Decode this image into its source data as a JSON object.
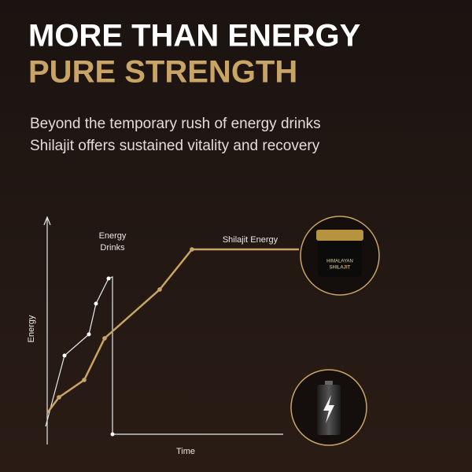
{
  "header": {
    "title": [
      "MORE THAN ENERGY",
      "PURE STRENGTH"
    ],
    "subtitle": [
      "Beyond the temporary rush of energy drinks",
      "Shilajit offers sustained vitality and recovery"
    ]
  },
  "graphic": {
    "drinks_label": [
      "Energy",
      "Drinks"
    ],
    "shilajit_label": "Shilajit Energy",
    "y_axis_label": "Energy",
    "x_axis_label": "Time",
    "jar_label": [
      "HIMALAYAN",
      "SHILAJIT"
    ]
  }
}
